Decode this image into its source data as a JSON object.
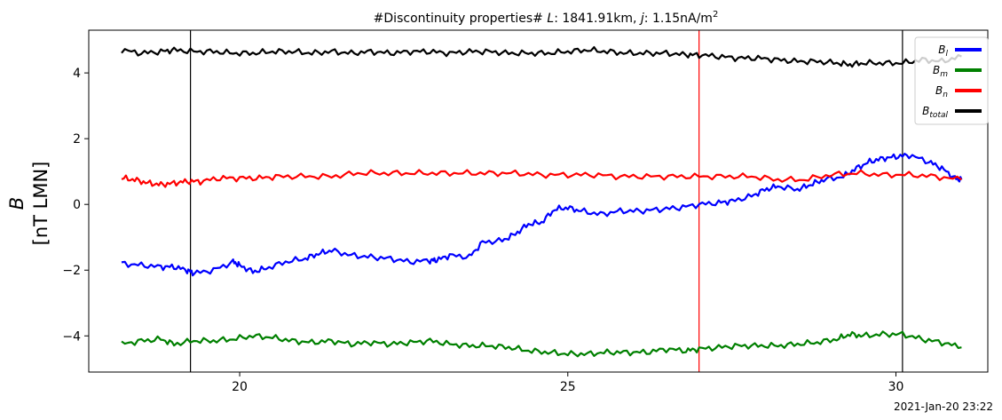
{
  "chart_data": {
    "type": "line",
    "title": "#Discontinuity properties# L: 1841.91km, j: 1.15nA/m²",
    "ylabel_line1": "B",
    "ylabel_line2": "[nT LMN]",
    "timestamp": "2021-Jan-20 23:22",
    "xlim": [
      17.7,
      31.4
    ],
    "ylim": [
      -5.1,
      5.3
    ],
    "x_ticks": [
      20,
      25,
      30
    ],
    "y_ticks": [
      -4,
      -2,
      0,
      2,
      4
    ],
    "vlines": [
      {
        "x": 19.25,
        "color": "#000000"
      },
      {
        "x": 27.0,
        "color": "#ff0000"
      },
      {
        "x": 30.1,
        "color": "#000000"
      }
    ],
    "legend_position": "top-right",
    "series": [
      {
        "name": "B_l",
        "label_main": "B",
        "label_sub": "l",
        "color": "#0000ff",
        "x": [
          18.2,
          18.5,
          18.8,
          19.0,
          19.2,
          19.3,
          19.6,
          19.9,
          20.0,
          20.2,
          20.4,
          20.7,
          21.0,
          21.2,
          21.4,
          21.7,
          22.0,
          22.3,
          22.6,
          22.9,
          23.0,
          23.2,
          23.5,
          23.7,
          24.0,
          24.2,
          24.4,
          24.6,
          24.8,
          25.0,
          25.2,
          25.5,
          25.8,
          26.1,
          26.4,
          26.7,
          27.0,
          27.3,
          27.5,
          27.8,
          28.0,
          28.2,
          28.5,
          28.7,
          28.9,
          29.2,
          29.4,
          29.6,
          29.8,
          30.0,
          30.2,
          30.5,
          30.7,
          30.9,
          31.0
        ],
        "y": [
          -1.8,
          -1.85,
          -1.9,
          -1.9,
          -2.0,
          -2.1,
          -2.0,
          -1.75,
          -1.85,
          -2.05,
          -1.95,
          -1.75,
          -1.65,
          -1.5,
          -1.4,
          -1.55,
          -1.6,
          -1.65,
          -1.75,
          -1.7,
          -1.7,
          -1.55,
          -1.6,
          -1.15,
          -1.1,
          -0.9,
          -0.6,
          -0.55,
          -0.15,
          -0.1,
          -0.2,
          -0.3,
          -0.2,
          -0.2,
          -0.15,
          -0.1,
          0.0,
          0.05,
          0.1,
          0.25,
          0.45,
          0.55,
          0.45,
          0.6,
          0.75,
          0.85,
          1.1,
          1.3,
          1.4,
          1.45,
          1.5,
          1.3,
          1.1,
          0.8,
          0.75
        ]
      },
      {
        "name": "B_m",
        "label_main": "B",
        "label_sub": "m",
        "color": "#008000",
        "x": [
          18.2,
          18.5,
          18.8,
          19.0,
          19.3,
          19.6,
          19.9,
          20.2,
          20.5,
          20.8,
          21.1,
          21.4,
          21.7,
          22.0,
          22.3,
          22.6,
          22.9,
          23.2,
          23.5,
          23.8,
          24.1,
          24.4,
          24.7,
          25.0,
          25.3,
          25.6,
          25.9,
          26.2,
          26.5,
          26.8,
          27.0,
          27.3,
          27.6,
          27.9,
          28.2,
          28.5,
          28.8,
          29.1,
          29.3,
          29.5,
          29.8,
          30.1,
          30.4,
          30.7,
          31.0
        ],
        "y": [
          -4.25,
          -4.15,
          -4.1,
          -4.25,
          -4.15,
          -4.15,
          -4.1,
          -4.0,
          -4.05,
          -4.15,
          -4.2,
          -4.15,
          -4.25,
          -4.2,
          -4.25,
          -4.2,
          -4.15,
          -4.25,
          -4.3,
          -4.3,
          -4.35,
          -4.45,
          -4.5,
          -4.55,
          -4.55,
          -4.5,
          -4.5,
          -4.5,
          -4.4,
          -4.45,
          -4.4,
          -4.35,
          -4.3,
          -4.3,
          -4.3,
          -4.25,
          -4.2,
          -4.1,
          -3.95,
          -4.0,
          -3.95,
          -3.95,
          -4.1,
          -4.2,
          -4.35
        ]
      },
      {
        "name": "B_n",
        "label_main": "B",
        "label_sub": "n",
        "color": "#ff0000",
        "x": [
          18.2,
          18.4,
          18.6,
          18.8,
          19.0,
          19.2,
          19.4,
          19.7,
          20.0,
          20.3,
          20.6,
          21.0,
          21.4,
          21.8,
          22.2,
          22.6,
          23.0,
          23.4,
          23.8,
          24.2,
          24.6,
          25.0,
          25.4,
          25.8,
          26.2,
          26.6,
          27.0,
          27.4,
          27.8,
          28.2,
          28.6,
          29.0,
          29.4,
          29.8,
          30.2,
          30.6,
          31.0
        ],
        "y": [
          0.8,
          0.75,
          0.65,
          0.6,
          0.65,
          0.7,
          0.7,
          0.8,
          0.8,
          0.8,
          0.85,
          0.85,
          0.85,
          0.95,
          0.95,
          0.95,
          0.95,
          0.95,
          0.95,
          0.95,
          0.9,
          0.9,
          0.9,
          0.85,
          0.85,
          0.85,
          0.85,
          0.85,
          0.85,
          0.75,
          0.75,
          0.9,
          0.95,
          0.9,
          0.9,
          0.85,
          0.75
        ]
      },
      {
        "name": "B_total",
        "label_main": "B",
        "label_sub": "total",
        "color": "#000000",
        "x": [
          18.2,
          18.5,
          18.8,
          19.0,
          19.3,
          19.6,
          19.9,
          20.2,
          20.5,
          20.8,
          21.1,
          21.4,
          21.7,
          22.0,
          22.3,
          22.6,
          22.9,
          23.2,
          23.5,
          23.8,
          24.1,
          24.4,
          24.7,
          25.0,
          25.3,
          25.6,
          25.9,
          26.2,
          26.5,
          26.8,
          27.0,
          27.3,
          27.6,
          27.9,
          28.2,
          28.5,
          28.8,
          29.1,
          29.3,
          29.5,
          29.8,
          30.1,
          30.4,
          30.7,
          31.0
        ],
        "y": [
          4.7,
          4.6,
          4.65,
          4.7,
          4.65,
          4.65,
          4.6,
          4.6,
          4.65,
          4.65,
          4.6,
          4.65,
          4.6,
          4.65,
          4.6,
          4.65,
          4.65,
          4.6,
          4.65,
          4.65,
          4.6,
          4.6,
          4.6,
          4.65,
          4.7,
          4.65,
          4.6,
          4.6,
          4.6,
          4.55,
          4.55,
          4.5,
          4.45,
          4.45,
          4.4,
          4.35,
          4.35,
          4.3,
          4.25,
          4.3,
          4.3,
          4.3,
          4.4,
          4.35,
          4.5
        ]
      }
    ]
  }
}
